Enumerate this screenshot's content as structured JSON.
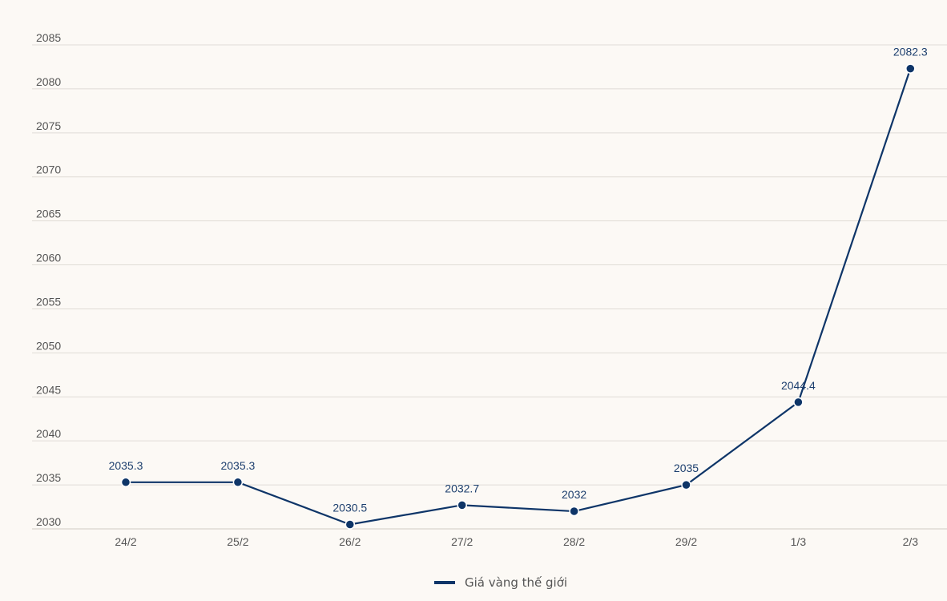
{
  "chart_data": {
    "type": "line",
    "title": "",
    "xlabel": "",
    "ylabel": "",
    "categories": [
      "24/2",
      "25/2",
      "26/2",
      "27/2",
      "28/2",
      "29/2",
      "1/3",
      "2/3"
    ],
    "series": [
      {
        "name": "Giá vàng thế giới",
        "values": [
          2035.3,
          2035.3,
          2030.5,
          2032.7,
          2032,
          2035,
          2044.4,
          2082.3
        ],
        "color": "#0e3568"
      }
    ],
    "data_labels": [
      "2035.3",
      "2035.3",
      "2030.5",
      "2032.7",
      "2032",
      "2035",
      "2044.4",
      "2082.3"
    ],
    "ylim": [
      2030,
      2085
    ],
    "yticks": [
      "2030",
      "2035",
      "2040",
      "2045",
      "2050",
      "2055",
      "2060",
      "2065",
      "2070",
      "2075",
      "2080",
      "2085"
    ],
    "grid": true,
    "legend_position": "bottom-center"
  }
}
